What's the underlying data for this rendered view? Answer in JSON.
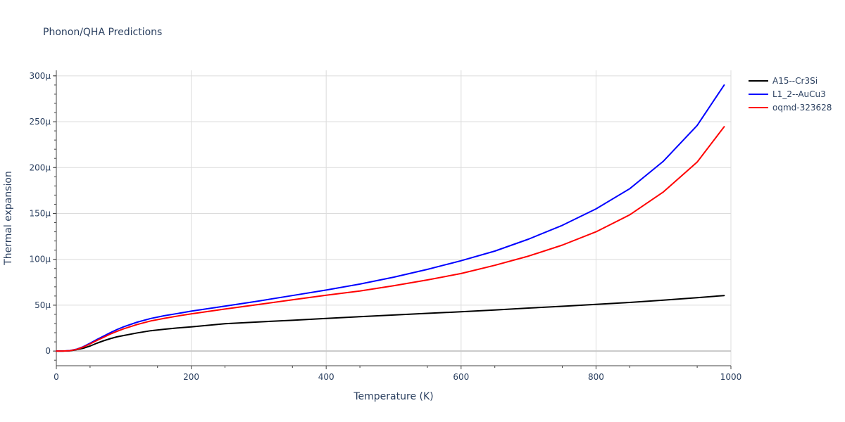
{
  "chart_data": {
    "type": "line",
    "title": "Phonon/QHA Predictions",
    "xlabel": "Temperature (K)",
    "ylabel": "Thermal expansion",
    "xlim": [
      0,
      1000
    ],
    "ylim": [
      -1.6e-05,
      0.000306
    ],
    "x_ticks": [
      0,
      200,
      400,
      600,
      800,
      1000
    ],
    "x_tick_labels": [
      "0",
      "200",
      "400",
      "600",
      "800",
      "1000"
    ],
    "y_ticks": [
      0,
      5e-05,
      0.0001,
      0.00015,
      0.0002,
      0.00025,
      0.0003
    ],
    "y_tick_labels": [
      "0",
      "50μ",
      "100μ",
      "150μ",
      "200μ",
      "250μ",
      "300μ"
    ],
    "grid": true,
    "legend_position": "top-right",
    "x": [
      0,
      10,
      20,
      30,
      40,
      50,
      60,
      70,
      80,
      90,
      100,
      120,
      140,
      160,
      180,
      200,
      250,
      300,
      350,
      400,
      450,
      500,
      550,
      600,
      650,
      700,
      750,
      800,
      850,
      900,
      950,
      990
    ],
    "series": [
      {
        "name": "A15--Cr3Si",
        "color": "#000000",
        "values": [
          0,
          0,
          3e-07,
          1.5e-06,
          3e-06,
          5.5e-06,
          8.5e-06,
          1.12e-05,
          1.35e-05,
          1.55e-05,
          1.7e-05,
          1.98e-05,
          2.22e-05,
          2.38e-05,
          2.52e-05,
          2.63e-05,
          2.98e-05,
          3.18e-05,
          3.35e-05,
          3.55e-05,
          3.75e-05,
          3.93e-05,
          4.11e-05,
          4.28e-05,
          4.48e-05,
          4.69e-05,
          4.88e-05,
          5.09e-05,
          5.3e-05,
          5.55e-05,
          5.82e-05,
          6.05e-05
        ]
      },
      {
        "name": "L1_2--AuCu3",
        "color": "#0000ff",
        "values": [
          0,
          0,
          5e-07,
          2e-06,
          4.8e-06,
          8.5e-06,
          1.25e-05,
          1.63e-05,
          2e-05,
          2.35e-05,
          2.65e-05,
          3.15e-05,
          3.55e-05,
          3.85e-05,
          4.1e-05,
          4.35e-05,
          4.9e-05,
          5.45e-05,
          6.05e-05,
          6.65e-05,
          7.3e-05,
          8.05e-05,
          8.9e-05,
          9.85e-05,
          0.000109,
          0.000122,
          0.000137,
          0.000155,
          0.000177,
          0.000207,
          0.000246,
          0.00029
        ]
      },
      {
        "name": "oqmd-323628",
        "color": "#ff0000",
        "values": [
          0,
          0,
          4e-07,
          1.8e-06,
          4.3e-06,
          7.8e-06,
          1.15e-05,
          1.5e-05,
          1.85e-05,
          2.15e-05,
          2.43e-05,
          2.9e-05,
          3.28e-05,
          3.57e-05,
          3.82e-05,
          4.05e-05,
          4.58e-05,
          5.08e-05,
          5.58e-05,
          6.08e-05,
          6.55e-05,
          7.12e-05,
          7.75e-05,
          8.45e-05,
          9.35e-05,
          0.0001035,
          0.0001155,
          0.00013,
          0.0001485,
          0.0001735,
          0.000206,
          0.0002445
        ]
      }
    ]
  }
}
